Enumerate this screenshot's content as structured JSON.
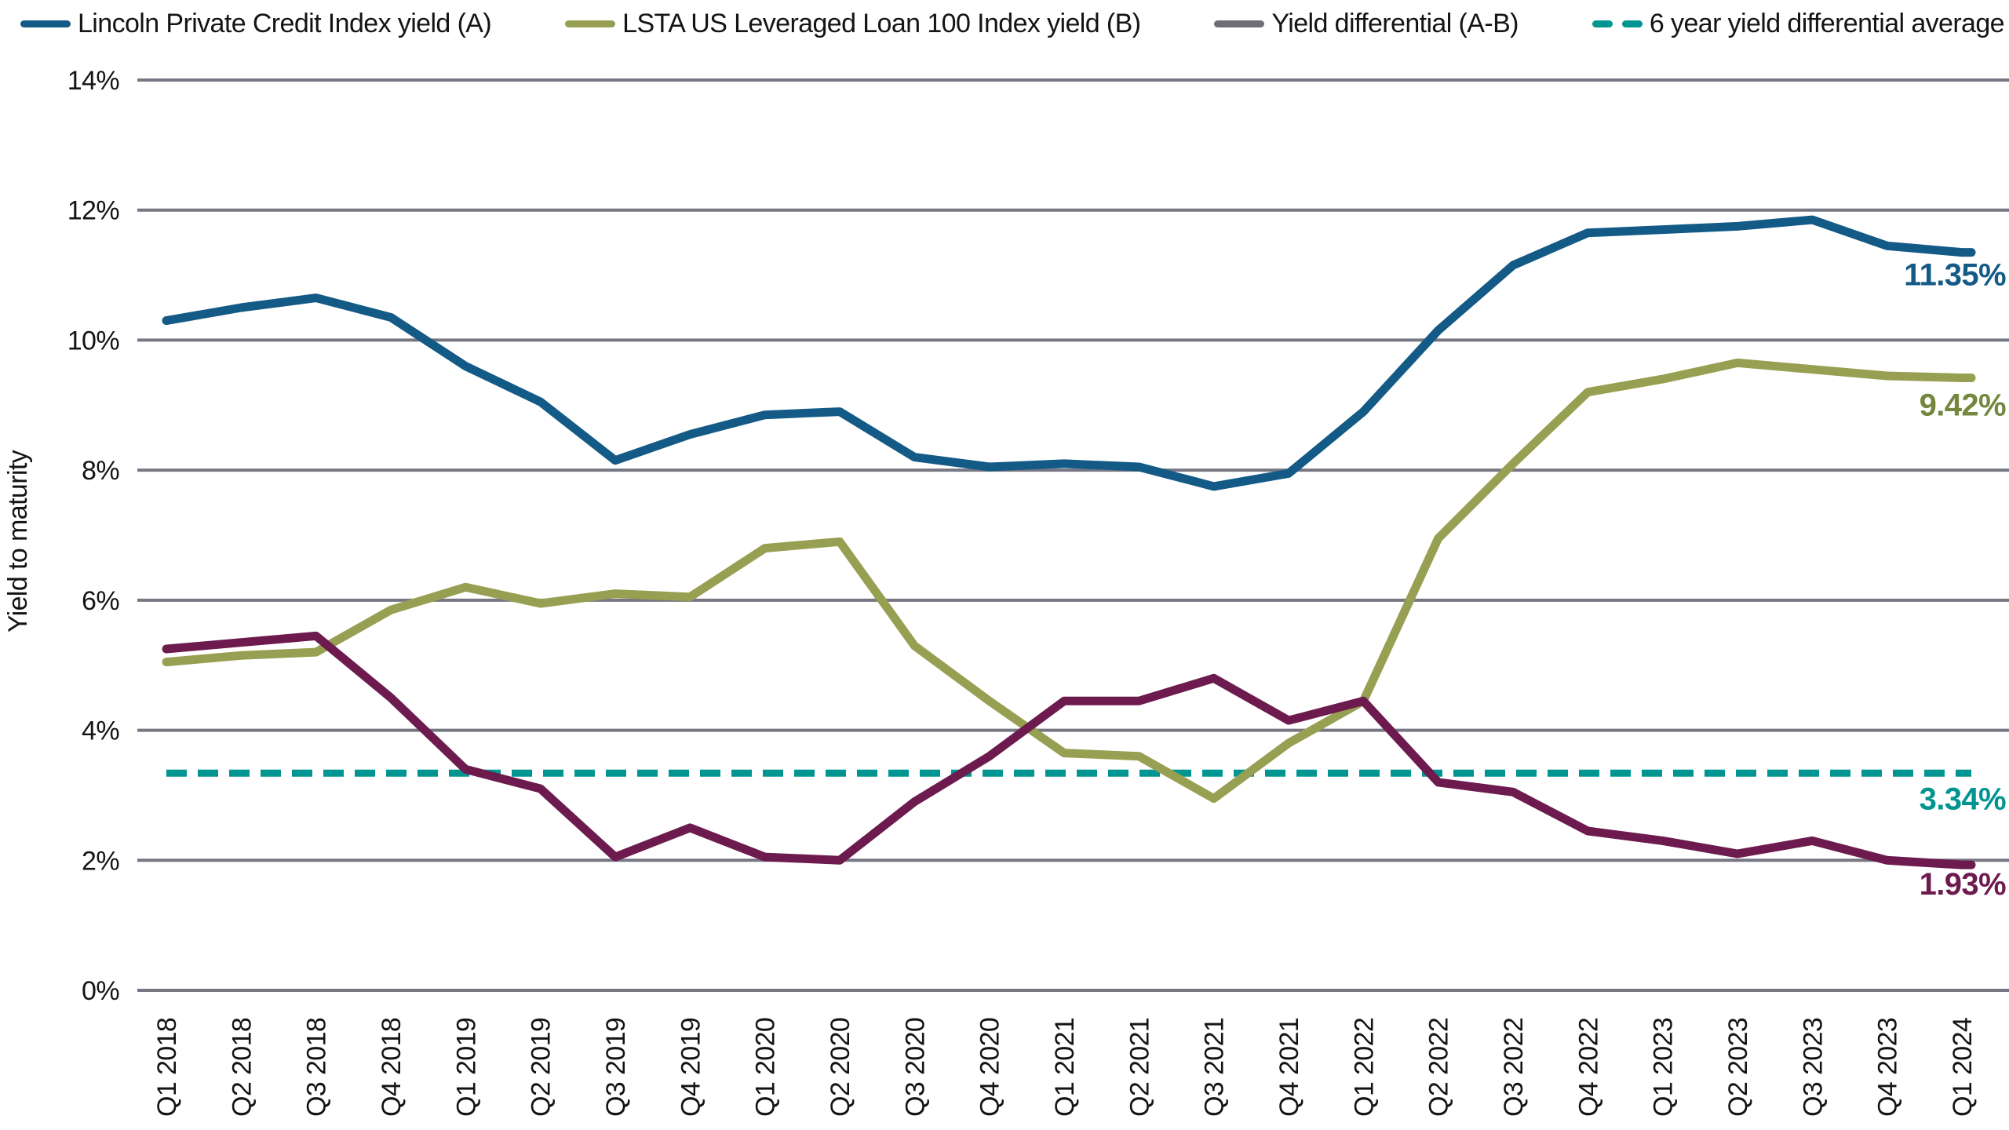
{
  "colors": {
    "background": "#ffffff",
    "gridline": "#777784",
    "axis_text": "#141414",
    "blue": "#135a86",
    "olive": "#97a052",
    "olive_label": "#75863f",
    "maroon": "#6d1b4f",
    "teal": "#009591",
    "legend_differential_swatch": "#6d6e78"
  },
  "legend": {
    "items": [
      {
        "label": "Lincoln Private Credit Index yield (A)",
        "swatch_color": "#135a86",
        "swatch_style": "solid"
      },
      {
        "label": "LSTA US Leveraged Loan 100 Index yield (B)",
        "swatch_color": "#97a052",
        "swatch_style": "solid"
      },
      {
        "label": "Yield differential (A-B)",
        "swatch_color": "#6d6e78",
        "swatch_style": "solid"
      },
      {
        "label": "6 year yield differential average",
        "swatch_color": "#009591",
        "swatch_style": "dashed"
      }
    ]
  },
  "chart_data": {
    "type": "line",
    "title": "",
    "xlabel": "",
    "ylabel": "Yield to maturity",
    "ylim": [
      0,
      14
    ],
    "y_ticks": [
      0,
      2,
      4,
      6,
      8,
      10,
      12,
      14
    ],
    "y_tick_suffix": "%",
    "grid": true,
    "legend_position": "top",
    "categories": [
      "Q1 2018",
      "Q2 2018",
      "Q3 2018",
      "Q4 2018",
      "Q1 2019",
      "Q2 2019",
      "Q3 2019",
      "Q4 2019",
      "Q1 2020",
      "Q2 2020",
      "Q3 2020",
      "Q4 2020",
      "Q1 2021",
      "Q2 2021",
      "Q3 2021",
      "Q4 2021",
      "Q1 2022",
      "Q2 2022",
      "Q3 2022",
      "Q4 2022",
      "Q1 2023",
      "Q2 2023",
      "Q3 2023",
      "Q4 2023",
      "Q1 2024"
    ],
    "series": [
      {
        "name": "Lincoln Private Credit Index yield (A)",
        "color": "#135a86",
        "end_label": "11.35%",
        "end_label_color": "#135a86",
        "values": [
          10.3,
          10.5,
          10.65,
          10.35,
          9.6,
          9.05,
          8.15,
          8.55,
          8.85,
          8.9,
          8.2,
          8.05,
          8.1,
          8.05,
          7.75,
          7.95,
          8.9,
          10.15,
          11.15,
          11.65,
          11.7,
          11.75,
          11.85,
          11.45,
          11.35
        ]
      },
      {
        "name": "LSTA US Leveraged Loan 100 Index yield (B)",
        "color": "#97a052",
        "end_label": "9.42%",
        "end_label_color": "#75863f",
        "values": [
          5.05,
          5.15,
          5.2,
          5.85,
          6.2,
          5.95,
          6.1,
          6.05,
          6.8,
          6.9,
          5.3,
          4.45,
          3.65,
          3.6,
          2.95,
          3.8,
          4.45,
          6.95,
          8.1,
          9.2,
          9.4,
          9.65,
          9.55,
          9.45,
          9.42
        ]
      },
      {
        "name": "Yield differential (A-B)",
        "color": "#6d1b4f",
        "end_label": "1.93%",
        "end_label_color": "#6d1b4f",
        "values": [
          5.25,
          5.35,
          5.45,
          4.5,
          3.4,
          3.1,
          2.05,
          2.5,
          2.05,
          2.0,
          2.9,
          3.6,
          4.45,
          4.45,
          4.8,
          4.15,
          4.45,
          3.2,
          3.05,
          2.45,
          2.3,
          2.1,
          2.3,
          2.0,
          1.93
        ]
      }
    ],
    "reference_line": {
      "name": "6 year yield differential average",
      "value": 3.34,
      "style": "dashed",
      "color": "#009591",
      "end_label": "3.34%",
      "end_label_color": "#009591"
    }
  }
}
